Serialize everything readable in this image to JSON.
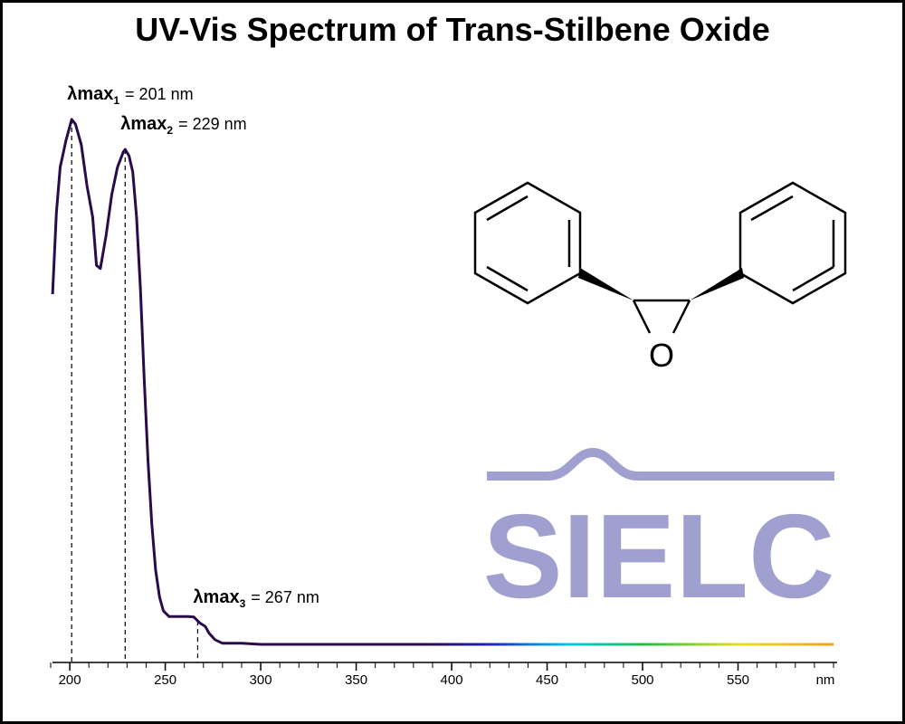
{
  "chart_data": {
    "type": "line",
    "title": "UV-Vis Spectrum of Trans-Stilbene Oxide",
    "xlabel": "nm",
    "x": [
      191,
      193,
      195,
      198,
      201,
      203,
      206,
      209,
      212,
      214,
      216,
      219,
      222,
      225,
      228,
      229,
      231,
      233,
      235,
      237,
      239,
      241,
      243,
      245,
      247,
      249,
      252,
      257,
      262,
      265,
      268,
      271,
      273,
      276,
      280,
      290,
      300,
      600
    ],
    "series": [
      {
        "name": "Trans-Stilbene Oxide",
        "color": "#2a0a4a",
        "values": [
          0.667,
          0.822,
          0.909,
          0.96,
          1.0,
          0.991,
          0.952,
          0.874,
          0.814,
          0.722,
          0.716,
          0.779,
          0.857,
          0.909,
          0.938,
          0.943,
          0.931,
          0.9,
          0.814,
          0.676,
          0.503,
          0.348,
          0.228,
          0.141,
          0.09,
          0.064,
          0.053,
          0.053,
          0.053,
          0.052,
          0.041,
          0.034,
          0.021,
          0.009,
          0.002,
          0.002,
          0,
          0
        ]
      }
    ],
    "xlim": [
      190,
      600
    ],
    "xticks": [
      200,
      250,
      300,
      350,
      400,
      450,
      500,
      550
    ],
    "xminor_step": 10,
    "ylim": [
      0,
      1
    ],
    "annotations": [
      {
        "label": "λmax",
        "sub": "1",
        "text": "= 201 nm",
        "x": 201
      },
      {
        "label": "λmax",
        "sub": "2",
        "text": "= 229 nm",
        "x": 229
      },
      {
        "label": "λmax",
        "sub": "3",
        "text": "= 267 nm",
        "x": 267
      }
    ],
    "logo": "SIELC"
  }
}
